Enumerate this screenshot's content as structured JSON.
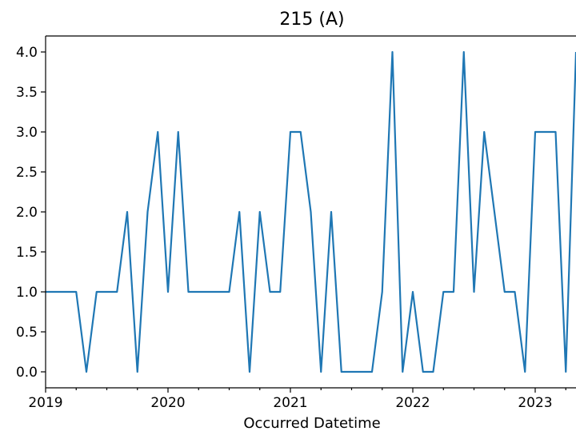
{
  "chart_data": {
    "type": "line",
    "title": "215 (A)",
    "xlabel": "Occurred Datetime",
    "ylabel": "",
    "x_tick_labels": [
      "2019",
      "2020",
      "2021",
      "2022",
      "2023"
    ],
    "y_tick_labels": [
      "0.0",
      "0.5",
      "1.0",
      "1.5",
      "2.0",
      "2.5",
      "3.0",
      "3.5",
      "4.0"
    ],
    "xlim": [
      "2019-01",
      "2023-05"
    ],
    "ylim": [
      -0.2,
      4.2
    ],
    "grid": false,
    "legend": "none",
    "series": [
      {
        "color": "#1f77b4",
        "x": [
          "2019-01",
          "2019-02",
          "2019-03",
          "2019-04",
          "2019-05",
          "2019-06",
          "2019-07",
          "2019-08",
          "2019-09",
          "2019-10",
          "2019-11",
          "2019-12",
          "2020-01",
          "2020-02",
          "2020-03",
          "2020-04",
          "2020-05",
          "2020-06",
          "2020-07",
          "2020-08",
          "2020-09",
          "2020-10",
          "2020-11",
          "2020-12",
          "2021-01",
          "2021-02",
          "2021-03",
          "2021-04",
          "2021-05",
          "2021-06",
          "2021-07",
          "2021-08",
          "2021-09",
          "2021-10",
          "2021-11",
          "2021-12",
          "2022-01",
          "2022-02",
          "2022-03",
          "2022-04",
          "2022-05",
          "2022-06",
          "2022-07",
          "2022-08",
          "2022-09",
          "2022-10",
          "2022-11",
          "2022-12",
          "2023-01",
          "2023-02",
          "2023-03",
          "2023-04",
          "2023-05"
        ],
        "values": [
          1,
          1,
          1,
          1,
          0,
          1,
          1,
          1,
          2,
          0,
          2,
          3,
          1,
          3,
          1,
          1,
          1,
          1,
          1,
          2,
          0,
          2,
          1,
          1,
          3,
          3,
          2,
          0,
          2,
          0,
          0,
          0,
          0,
          1,
          4,
          0,
          1,
          0,
          0,
          1,
          1,
          4,
          1,
          3,
          2,
          1,
          1,
          0,
          3,
          3,
          3,
          0,
          4
        ]
      }
    ]
  }
}
